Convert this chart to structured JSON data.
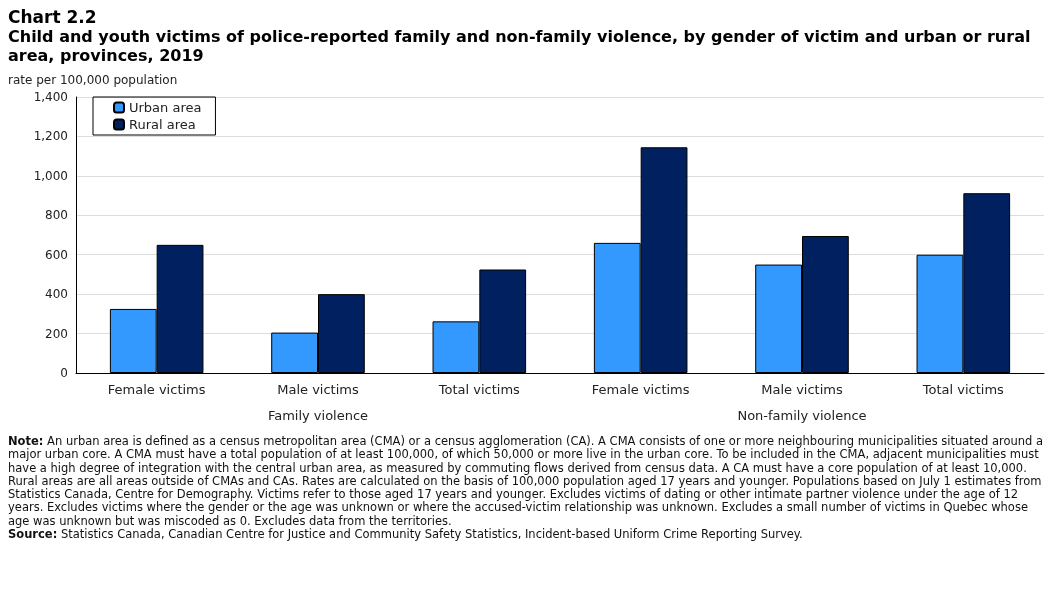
{
  "chart_data": {
    "type": "bar",
    "title": "Chart 2.2",
    "subtitle": "Child and youth victims of police-reported family and non-family violence, by gender of victim and urban or rural area, provinces, 2019",
    "ylabel": "rate per 100,000 population",
    "categories": [
      "Female victims",
      "Male victims",
      "Total victims",
      "Female victims",
      "Male victims",
      "Total victims"
    ],
    "series": [
      {
        "name": "Urban area",
        "color": "#3399ff",
        "values": [
          325,
          205,
          262,
          660,
          550,
          600
        ]
      },
      {
        "name": "Rural area",
        "color": "#002060",
        "values": [
          650,
          400,
          525,
          1145,
          695,
          912
        ]
      }
    ],
    "ylim": [
      0,
      1400
    ],
    "yticks": [
      0,
      200,
      400,
      600,
      800,
      {
        "value": 1000,
        "label": "1,000"
      },
      {
        "value": 1200,
        "label": "1,200"
      },
      {
        "value": 1400,
        "label": "1,400"
      }
    ],
    "grid": "y",
    "legend": "top left",
    "annotations": [
      "Family violence",
      "Non-family violence",
      "Note: An urban area is defined as a census metropolitan area (CMA) or a census agglomeration (CA). A CMA consists of one or more neighbouring municipalities situated around a major urban core. A CMA must have a total population of at least 100,000, of which 50,000 or more live in the urban core. To be included in the CMA, adjacent municipalities must have a high degree of integration with the central urban area, as measured by commuting flows derived from census data. A CA must have a core population of at least 10,000. Rural areas are all areas outside of CMAs and CAs. Rates are calculated on the basis of 100,000 population aged 17 years and younger. Populations based on July 1 estimates from Statistics Canada, Centre for Demography. Victims refer to those aged 17 years and younger. Excludes victims of dating or other intimate partner violence under the age of 12 years. Excludes victims where the gender or the age was unknown or where the accused-victim relationship was unknown. Excludes a small number of victims in Quebec whose age was unknown but was miscoded as 0. Excludes data from the territories.",
      "Source: Statistics Canada, Canadian Centre for Justice and Community Safety Statistics, Incident-based Uniform Crime Reporting Survey."
    ]
  }
}
